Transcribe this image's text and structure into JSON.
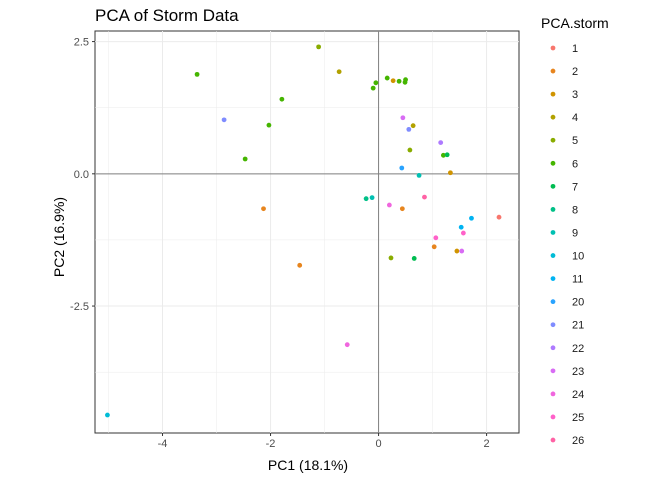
{
  "chart_data": {
    "type": "scatter",
    "title": "PCA of Storm Data",
    "xlabel": "PC1 (18.1%)",
    "ylabel": "PC2 (16.9%)",
    "xlim": [
      -5.25,
      2.6
    ],
    "ylim": [
      -4.9,
      2.7
    ],
    "x_ticks": [
      -4,
      -2,
      0,
      2
    ],
    "y_ticks": [
      2.5,
      0.0,
      -2.5
    ],
    "x_tick_labels": [
      "-4",
      "-2",
      "0",
      "2"
    ],
    "y_tick_labels": [
      "2.5",
      "0.0",
      "-2.5"
    ],
    "grid": true,
    "reference_lines": {
      "x": 0,
      "y": 0
    },
    "legend": {
      "title": "PCA.storm",
      "position": "right",
      "entries": [
        {
          "label": "1",
          "color": "#F8766D"
        },
        {
          "label": "2",
          "color": "#E7851E"
        },
        {
          "label": "3",
          "color": "#D09400"
        },
        {
          "label": "4",
          "color": "#B2A100"
        },
        {
          "label": "5",
          "color": "#89AC00"
        },
        {
          "label": "6",
          "color": "#45B500"
        },
        {
          "label": "7",
          "color": "#00BC51"
        },
        {
          "label": "8",
          "color": "#00C087"
        },
        {
          "label": "9",
          "color": "#00C0B2"
        },
        {
          "label": "10",
          "color": "#00BCD6"
        },
        {
          "label": "11",
          "color": "#00B3F2"
        },
        {
          "label": "20",
          "color": "#29A3FF"
        },
        {
          "label": "21",
          "color": "#7F8CFF"
        },
        {
          "label": "22",
          "color": "#AE7AFF"
        },
        {
          "label": "23",
          "color": "#D86CF4"
        },
        {
          "label": "24",
          "color": "#F066DE"
        },
        {
          "label": "25",
          "color": "#FF61C9"
        },
        {
          "label": "26",
          "color": "#FF62A5"
        }
      ]
    },
    "points": [
      {
        "x": 2.23,
        "y": -0.82,
        "series": "1"
      },
      {
        "x": -2.13,
        "y": -0.66,
        "series": "2"
      },
      {
        "x": -1.46,
        "y": -1.73,
        "series": "2"
      },
      {
        "x": 0.44,
        "y": -0.66,
        "series": "2"
      },
      {
        "x": 1.03,
        "y": -1.38,
        "series": "2"
      },
      {
        "x": 0.27,
        "y": 1.76,
        "series": "3"
      },
      {
        "x": 1.33,
        "y": 0.02,
        "series": "3"
      },
      {
        "x": 1.45,
        "y": -1.46,
        "series": "3"
      },
      {
        "x": -0.73,
        "y": 1.93,
        "series": "4"
      },
      {
        "x": 0.64,
        "y": 0.91,
        "series": "4"
      },
      {
        "x": -1.11,
        "y": 2.4,
        "series": "5"
      },
      {
        "x": 0.58,
        "y": 0.45,
        "series": "5"
      },
      {
        "x": 0.23,
        "y": -1.59,
        "series": "5"
      },
      {
        "x": -3.36,
        "y": 1.88,
        "series": "6"
      },
      {
        "x": -2.03,
        "y": 0.92,
        "series": "6"
      },
      {
        "x": -2.47,
        "y": 0.28,
        "series": "6"
      },
      {
        "x": -1.79,
        "y": 1.41,
        "series": "6"
      },
      {
        "x": -0.1,
        "y": 1.62,
        "series": "6"
      },
      {
        "x": -0.05,
        "y": 1.72,
        "series": "6"
      },
      {
        "x": 0.16,
        "y": 1.81,
        "series": "6"
      },
      {
        "x": 0.38,
        "y": 1.75,
        "series": "6"
      },
      {
        "x": 0.5,
        "y": 1.78,
        "series": "6"
      },
      {
        "x": 0.49,
        "y": 1.73,
        "series": "6"
      },
      {
        "x": 1.2,
        "y": 0.35,
        "series": "6"
      },
      {
        "x": 0.66,
        "y": -1.6,
        "series": "7"
      },
      {
        "x": 1.27,
        "y": 0.36,
        "series": "7"
      },
      {
        "x": -0.23,
        "y": -0.47,
        "series": "8"
      },
      {
        "x": -0.12,
        "y": -0.45,
        "series": "9"
      },
      {
        "x": 0.75,
        "y": -0.03,
        "series": "9"
      },
      {
        "x": -5.02,
        "y": -4.56,
        "series": "10"
      },
      {
        "x": 1.53,
        "y": -1.01,
        "series": "11"
      },
      {
        "x": 1.72,
        "y": -0.84,
        "series": "11"
      },
      {
        "x": 0.43,
        "y": 0.11,
        "series": "20"
      },
      {
        "x": -2.86,
        "y": 1.02,
        "series": "21"
      },
      {
        "x": 0.56,
        "y": 0.84,
        "series": "21"
      },
      {
        "x": 1.15,
        "y": 0.59,
        "series": "22"
      },
      {
        "x": 1.54,
        "y": -1.46,
        "series": "23"
      },
      {
        "x": 0.45,
        "y": 1.06,
        "series": "23"
      },
      {
        "x": -0.58,
        "y": -3.23,
        "series": "24"
      },
      {
        "x": 0.2,
        "y": -0.59,
        "series": "24"
      },
      {
        "x": 1.06,
        "y": -1.21,
        "series": "25"
      },
      {
        "x": 1.57,
        "y": -1.12,
        "series": "25"
      },
      {
        "x": 0.85,
        "y": -0.44,
        "series": "26"
      }
    ]
  }
}
